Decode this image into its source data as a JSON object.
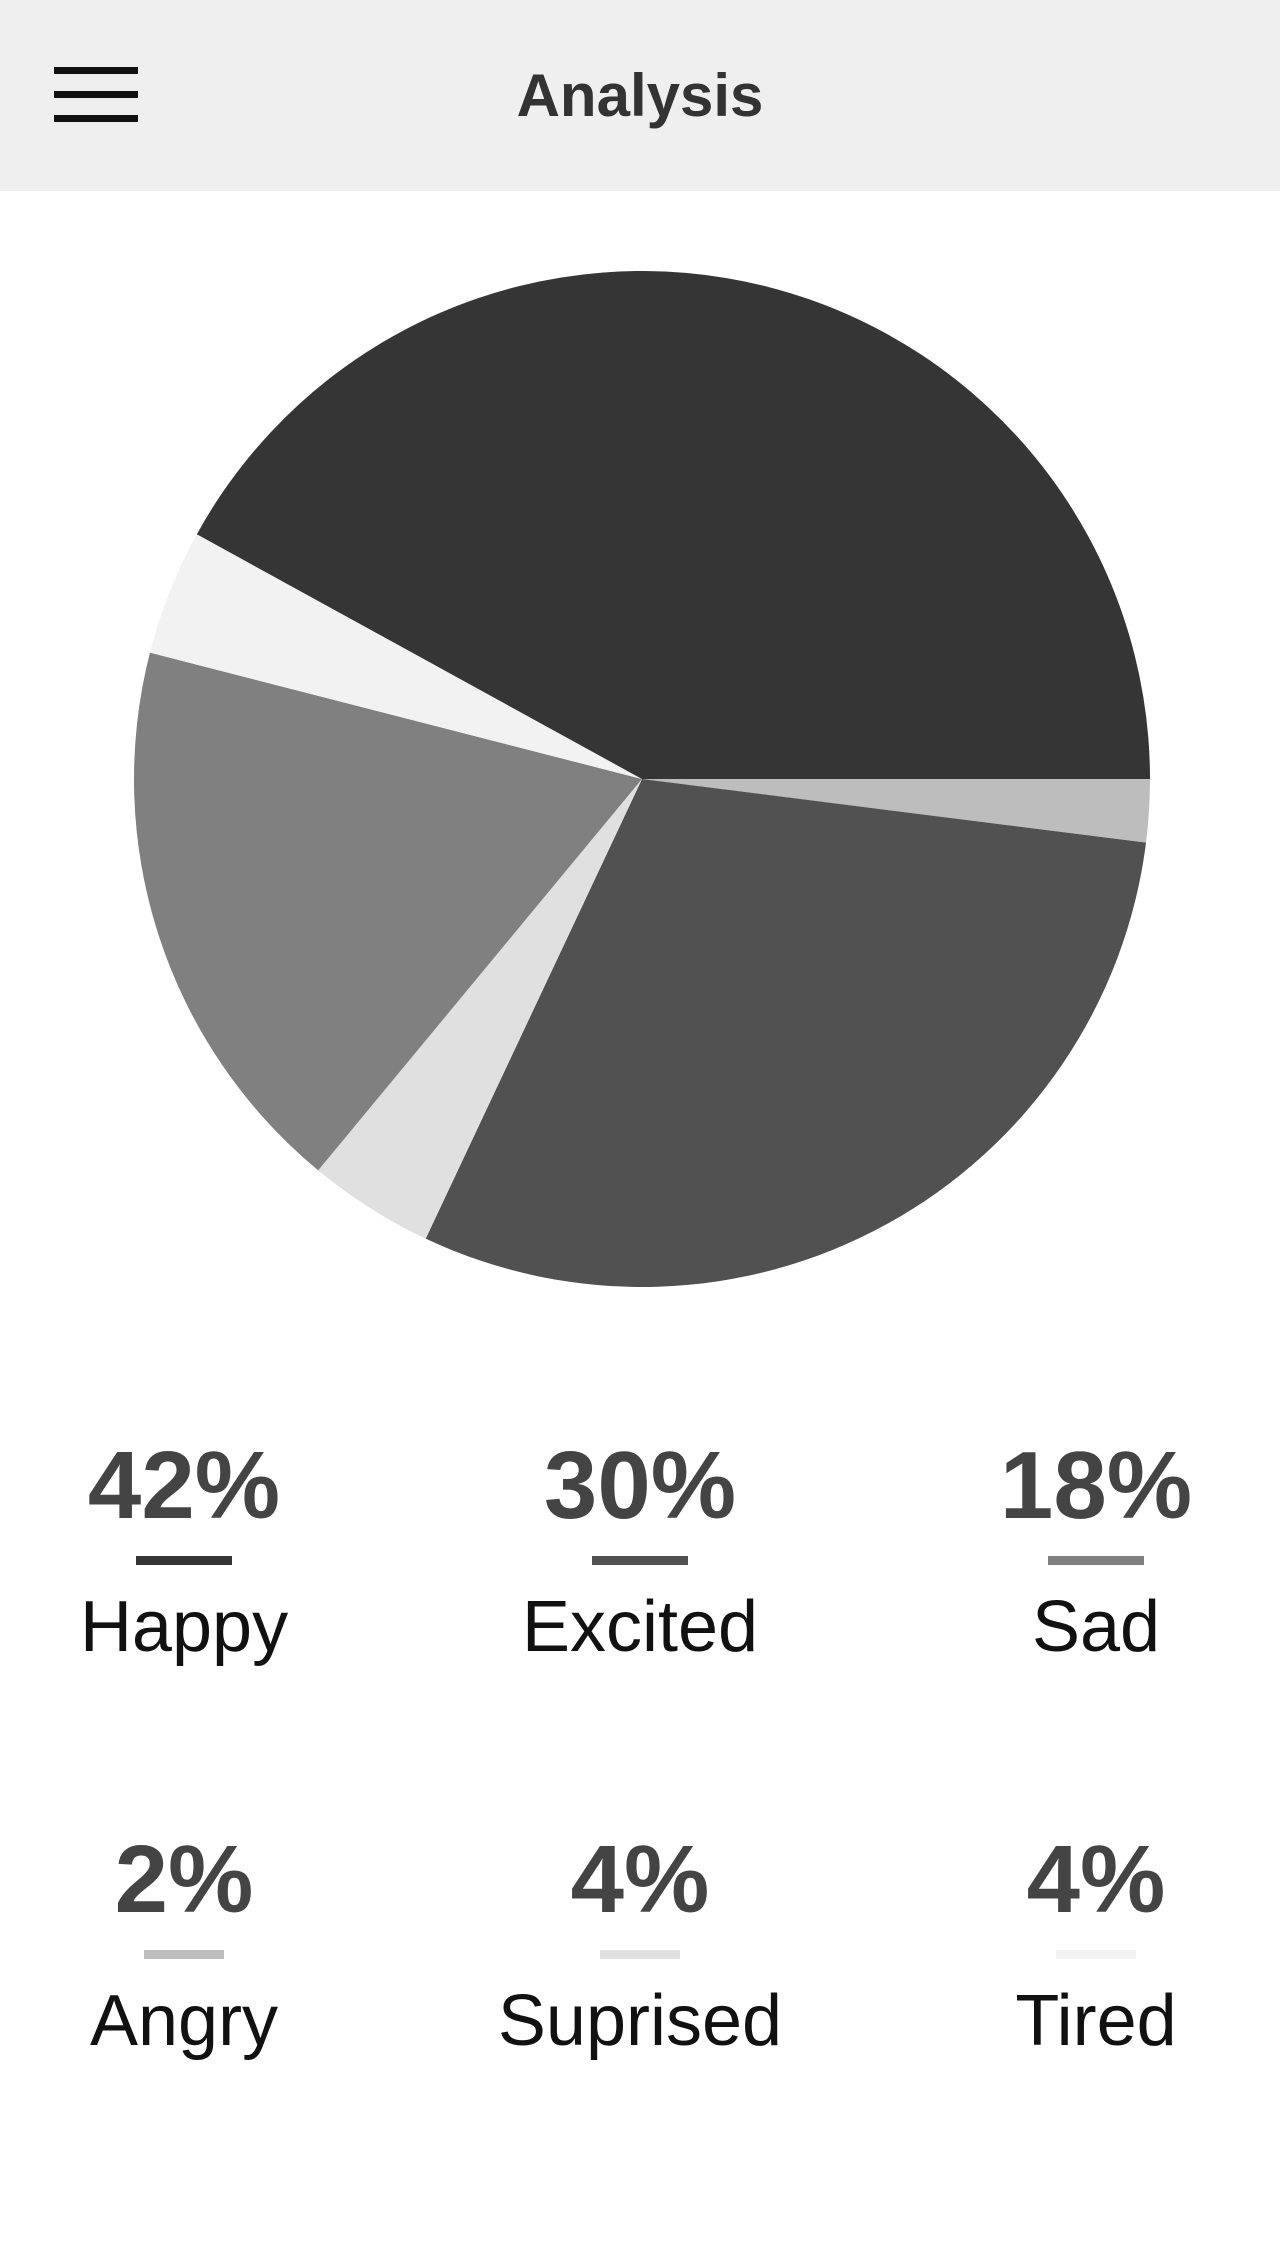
{
  "header": {
    "title": "Analysis",
    "menu_icon": "hamburger-menu-icon"
  },
  "chart_data": {
    "type": "pie",
    "title": "",
    "slices": [
      {
        "label": "Happy",
        "value": 42,
        "value_text": "42%",
        "color": "#353535"
      },
      {
        "label": "Excited",
        "value": 30,
        "value_text": "30%",
        "color": "#515151"
      },
      {
        "label": "Sad",
        "value": 18,
        "value_text": "18%",
        "color": "#808080"
      },
      {
        "label": "Angry",
        "value": 2,
        "value_text": "2%",
        "color": "#bdbdbd"
      },
      {
        "label": "Suprised",
        "value": 4,
        "value_text": "4%",
        "color": "#e0e0e0"
      },
      {
        "label": "Tired",
        "value": 4,
        "value_text": "4%",
        "color": "#f2f2f2"
      }
    ]
  }
}
